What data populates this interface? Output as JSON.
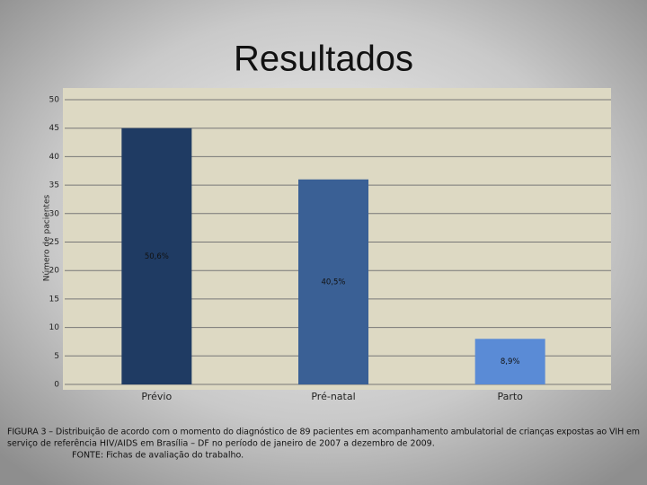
{
  "chart_data": {
    "type": "bar",
    "title": "Resultados",
    "y_label": "Número de pacientes",
    "categories": [
      "Prévio",
      "Pré-natal",
      "Parto"
    ],
    "values": [
      45,
      36,
      8
    ],
    "colors": [
      "#1f3b63",
      "#3a6095",
      "#5a8bd6"
    ],
    "annotations": [
      "50,6%",
      "40,5%",
      "8,9%"
    ],
    "ylim": [
      0,
      50
    ],
    "yticks": [
      0,
      5,
      10,
      15,
      20,
      25,
      30,
      35,
      40,
      45,
      50
    ],
    "grid": true,
    "caption": [
      "FIGURA 3 – Distribuição de acordo com o momento do diagnóstico de 89 pacientes em acompanhamento ambulatorial de crianças expostas ao VIH em",
      "serviço de referência HIV/AIDS em Brasília – DF no período de janeiro de 2007 a dezembro de 2009."
    ],
    "source": "FONTE: Fichas de avaliação do trabalho."
  }
}
